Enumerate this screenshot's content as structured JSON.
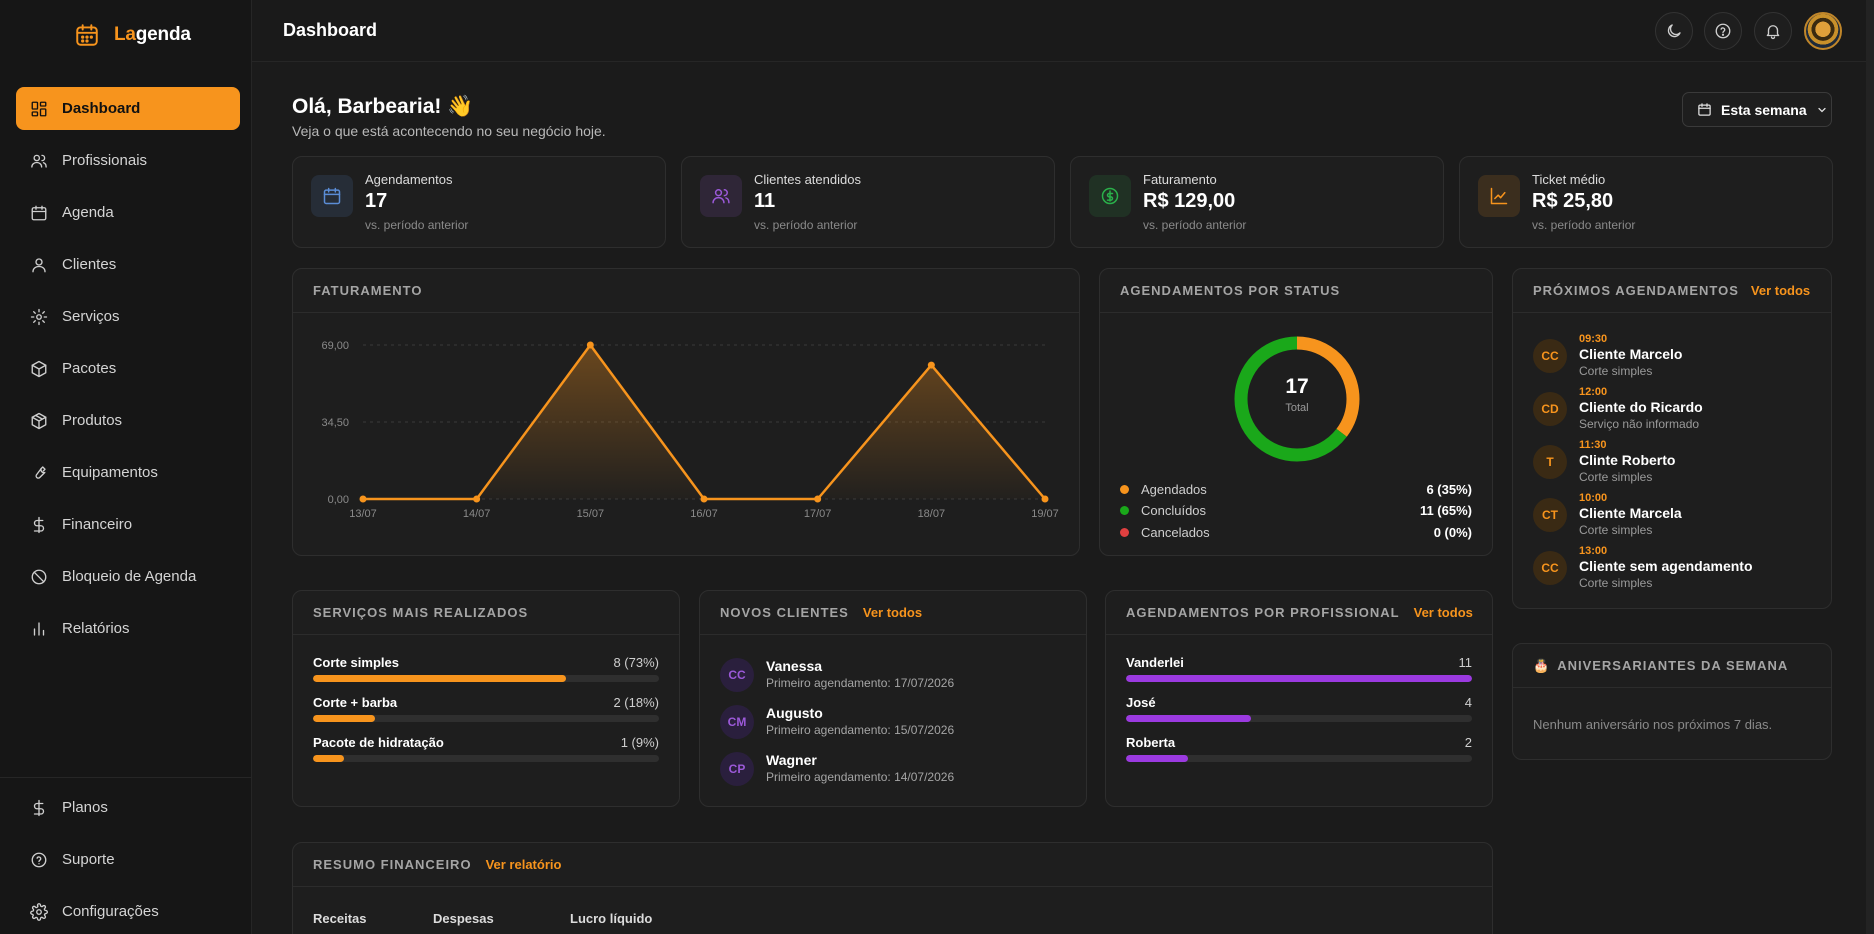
{
  "app": {
    "logo_prefix": "La",
    "logo_suffix": "genda",
    "colors": {
      "accent": "#f7941d",
      "purple": "#9b3ae0",
      "green": "#1aa81a",
      "red": "#e04040",
      "blue": "#5b8dd6"
    }
  },
  "sidebar": {
    "items": [
      {
        "label": "Dashboard",
        "icon": "dashboard-icon",
        "active": true
      },
      {
        "label": "Profissionais",
        "icon": "users-icon"
      },
      {
        "label": "Agenda",
        "icon": "calendar-icon"
      },
      {
        "label": "Clientes",
        "icon": "user-icon"
      },
      {
        "label": "Serviços",
        "icon": "gear-cog-icon"
      },
      {
        "label": "Pacotes",
        "icon": "box-icon"
      },
      {
        "label": "Produtos",
        "icon": "package-icon"
      },
      {
        "label": "Equipamentos",
        "icon": "wrench-icon"
      },
      {
        "label": "Financeiro",
        "icon": "dollar-icon"
      },
      {
        "label": "Bloqueio de Agenda",
        "icon": "ban-icon"
      },
      {
        "label": "Relatórios",
        "icon": "bar-chart-icon"
      }
    ],
    "bottom_items": [
      {
        "label": "Planos",
        "icon": "dollar-icon"
      },
      {
        "label": "Suporte",
        "icon": "help-circle-icon"
      },
      {
        "label": "Configurações",
        "icon": "settings-icon"
      }
    ]
  },
  "topbar": {
    "title": "Dashboard"
  },
  "greeting": {
    "title": "Olá, Barbearia! 👋",
    "subtitle": "Veja o que está acontecendo no seu negócio hoje.",
    "period_button": "Esta semana"
  },
  "stats": [
    {
      "label": "Agendamentos",
      "value": "17",
      "sub": "vs. período anterior",
      "icon": "calendar-icon",
      "color": "#5b8dd6"
    },
    {
      "label": "Clientes atendidos",
      "value": "11",
      "sub": "vs. período anterior",
      "icon": "users-icon",
      "color": "#9b59d8"
    },
    {
      "label": "Faturamento",
      "value": "R$ 129,00",
      "sub": "vs. período anterior",
      "icon": "dollar-circle-icon",
      "color": "#2ab04a"
    },
    {
      "label": "Ticket médio",
      "value": "R$ 25,80",
      "sub": "vs. período anterior",
      "icon": "trend-chart-icon",
      "color": "#f7941d"
    }
  ],
  "faturamento": {
    "title": "FATURAMENTO",
    "chart_data": {
      "type": "area",
      "categories": [
        "13/07",
        "14/07",
        "15/07",
        "16/07",
        "17/07",
        "18/07",
        "19/07"
      ],
      "values": [
        0,
        0,
        69,
        0,
        0,
        60,
        0
      ],
      "y_ticks": [
        "0,00",
        "34,50",
        "69,00"
      ],
      "ylim": [
        0,
        69
      ],
      "grid": true,
      "color": "#f7941d"
    }
  },
  "status": {
    "title": "AGENDAMENTOS POR STATUS",
    "total": "17",
    "total_label": "Total",
    "chart_data": {
      "type": "pie",
      "labels": [
        "Agendados",
        "Concluídos",
        "Cancelados"
      ],
      "values": [
        6,
        11,
        0
      ],
      "colors": [
        "#f7941d",
        "#1aa81a",
        "#e04040"
      ]
    },
    "legend": [
      {
        "label": "Agendados",
        "value": "6 (35%)",
        "color": "#f7941d"
      },
      {
        "label": "Concluídos",
        "value": "11 (65%)",
        "color": "#1aa81a"
      },
      {
        "label": "Cancelados",
        "value": "0 (0%)",
        "color": "#e04040"
      }
    ]
  },
  "upcoming": {
    "title": "PRÓXIMOS AGENDAMENTOS",
    "link": "Ver todos",
    "items": [
      {
        "initials": "CC",
        "time": "09:30",
        "name": "Cliente Marcelo",
        "service": "Corte simples"
      },
      {
        "initials": "CD",
        "time": "12:00",
        "name": "Cliente do Ricardo",
        "service": "Serviço não informado"
      },
      {
        "initials": "T",
        "time": "11:30",
        "name": "Clinte Roberto",
        "service": "Corte simples"
      },
      {
        "initials": "CT",
        "time": "10:00",
        "name": "Cliente Marcela",
        "service": "Corte simples"
      },
      {
        "initials": "CC",
        "time": "13:00",
        "name": "Cliente sem agendamento",
        "service": "Corte simples"
      }
    ]
  },
  "birthdays": {
    "icon": "cake-icon",
    "title": "ANIVERSARIANTES DA SEMANA",
    "empty": "Nenhum aniversário nos próximos 7 dias."
  },
  "services": {
    "title": "SERVIÇOS MAIS REALIZADOS",
    "items": [
      {
        "label": "Corte simples",
        "value": "8 (73%)",
        "fraction": 0.73
      },
      {
        "label": "Corte + barba",
        "value": "2 (18%)",
        "fraction": 0.18
      },
      {
        "label": "Pacote de hidratação",
        "value": "1 (9%)",
        "fraction": 0.09
      }
    ]
  },
  "new_clients": {
    "title": "NOVOS CLIENTES",
    "link": "Ver todos",
    "items": [
      {
        "initials": "CC",
        "name": "Vanessa",
        "sub": "Primeiro agendamento: 17/07/2026"
      },
      {
        "initials": "CM",
        "name": "Augusto",
        "sub": "Primeiro agendamento: 15/07/2026"
      },
      {
        "initials": "CP",
        "name": "Wagner",
        "sub": "Primeiro agendamento: 14/07/2026"
      }
    ]
  },
  "by_professional": {
    "title": "AGENDAMENTOS POR PROFISSIONAL",
    "link": "Ver todos",
    "max": 11,
    "items": [
      {
        "label": "Vanderlei",
        "value": "11",
        "fraction": 1.0
      },
      {
        "label": "José",
        "value": "4",
        "fraction": 0.36
      },
      {
        "label": "Roberta",
        "value": "2",
        "fraction": 0.18
      }
    ]
  },
  "finance_summary": {
    "title": "RESUMO FINANCEIRO",
    "link": "Ver relatório",
    "columns": [
      "Receitas",
      "Despesas",
      "Lucro líquido"
    ]
  }
}
